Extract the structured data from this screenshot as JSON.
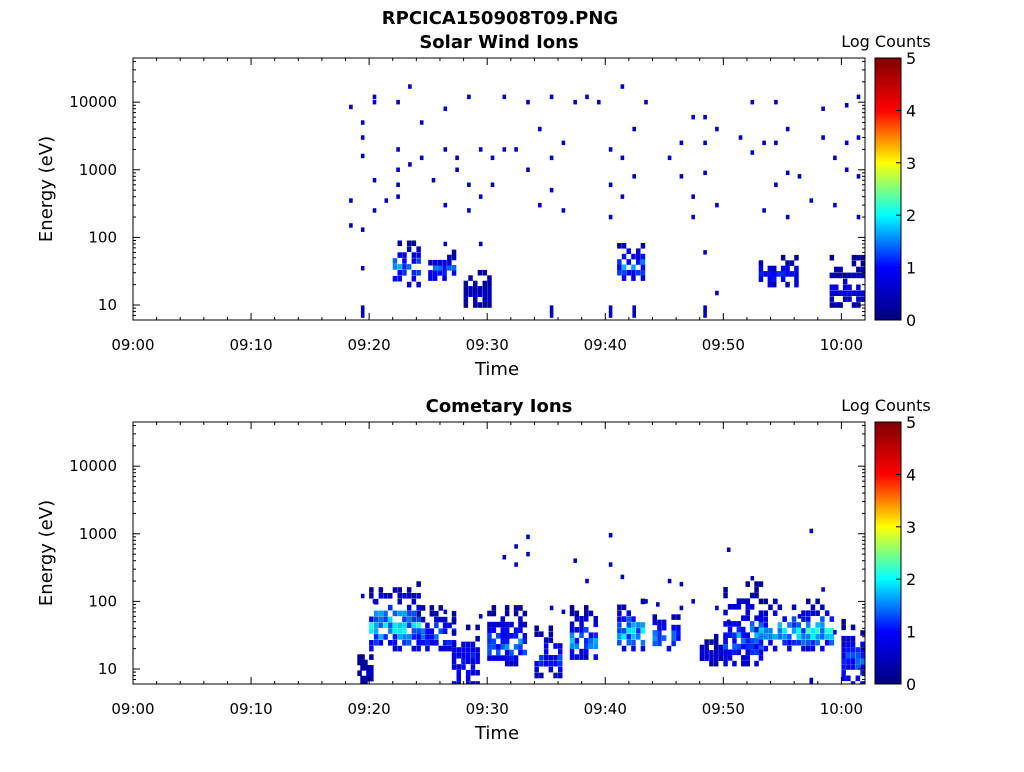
{
  "figure_title": "RPCICA150908T09.PNG",
  "colormap_stops": [
    "#000080",
    "#0000ff",
    "#00ffff",
    "#ffff00",
    "#ff0000",
    "#800000"
  ],
  "chart_data": [
    {
      "type": "heatmap",
      "title": "Solar Wind Ions",
      "xlabel": "Time",
      "ylabel": "Energy (eV)",
      "yscale": "log",
      "xlim": [
        "09:00",
        "10:02"
      ],
      "ylim": [
        6,
        45000
      ],
      "xticks": [
        "09:00",
        "09:10",
        "09:20",
        "09:30",
        "09:40",
        "09:50",
        "10:00"
      ],
      "yticks": [
        "10",
        "100",
        "1000",
        "10000"
      ],
      "colorbar": {
        "label": "Log Counts",
        "range": [
          0,
          5
        ],
        "ticks": [
          "0",
          "1",
          "2",
          "3",
          "4",
          "5"
        ]
      },
      "dense_features": [
        {
          "x_start": "09:22",
          "x_end": "09:24",
          "y_low": 20,
          "y_high": 100,
          "log_counts_peak": 1.8
        },
        {
          "x_start": "09:25",
          "x_end": "09:27",
          "y_low": 25,
          "y_high": 60,
          "log_counts_peak": 1.5
        },
        {
          "x_start": "09:28",
          "x_end": "09:30",
          "y_low": 10,
          "y_high": 30,
          "log_counts_peak": 0.6
        },
        {
          "x_start": "09:41",
          "x_end": "09:43",
          "y_low": 25,
          "y_high": 90,
          "log_counts_peak": 1.8
        },
        {
          "x_start": "09:53",
          "x_end": "09:56",
          "y_low": 20,
          "y_high": 50,
          "log_counts_peak": 1.4
        },
        {
          "x_start": "09:59",
          "x_end": "10:02",
          "y_low": 10,
          "y_high": 50,
          "log_counts_peak": 1.0
        }
      ],
      "points": [
        [
          "09:18",
          8500,
          0.5
        ],
        [
          "09:18",
          350,
          0.5
        ],
        [
          "09:18",
          150,
          0.5
        ],
        [
          "09:19",
          5000,
          0.5
        ],
        [
          "09:19",
          1600,
          0.5
        ],
        [
          "09:19",
          3000,
          0.5
        ],
        [
          "09:19",
          130,
          0.5
        ],
        [
          "09:19",
          35,
          0.5
        ],
        [
          "09:19",
          8,
          0.5
        ],
        [
          "09:20",
          12000,
          0.5
        ],
        [
          "09:20",
          10000,
          0.5
        ],
        [
          "09:20",
          700,
          0.5
        ],
        [
          "09:20",
          250,
          0.5
        ],
        [
          "09:21",
          350,
          0.5
        ],
        [
          "09:22",
          10000,
          0.5
        ],
        [
          "09:22",
          2000,
          0.5
        ],
        [
          "09:22",
          1000,
          0.5
        ],
        [
          "09:22",
          600,
          0.5
        ],
        [
          "09:22",
          400,
          0.5
        ],
        [
          "09:23",
          17000,
          0.5
        ],
        [
          "09:23",
          1200,
          0.5
        ],
        [
          "09:24",
          5000,
          0.5
        ],
        [
          "09:24",
          1500,
          0.5
        ],
        [
          "09:25",
          700,
          0.5
        ],
        [
          "09:26",
          8000,
          0.5
        ],
        [
          "09:26",
          2000,
          0.5
        ],
        [
          "09:26",
          300,
          0.5
        ],
        [
          "09:26",
          80,
          0.5
        ],
        [
          "09:27",
          1500,
          0.5
        ],
        [
          "09:27",
          1000,
          0.5
        ],
        [
          "09:28",
          12000,
          0.5
        ],
        [
          "09:28",
          600,
          0.5
        ],
        [
          "09:28",
          250,
          0.5
        ],
        [
          "09:29",
          2000,
          0.5
        ],
        [
          "09:29",
          400,
          0.5
        ],
        [
          "09:29",
          80,
          0.5
        ],
        [
          "09:30",
          1500,
          0.5
        ],
        [
          "09:30",
          600,
          0.5
        ],
        [
          "09:31",
          12000,
          0.5
        ],
        [
          "09:31",
          2000,
          0.5
        ],
        [
          "09:32",
          2000,
          0.5
        ],
        [
          "09:33",
          10000,
          0.5
        ],
        [
          "09:33",
          1000,
          0.5
        ],
        [
          "09:34",
          4000,
          0.5
        ],
        [
          "09:34",
          300,
          0.5
        ],
        [
          "09:35",
          12000,
          0.5
        ],
        [
          "09:35",
          1500,
          0.5
        ],
        [
          "09:35",
          500,
          0.5
        ],
        [
          "09:35",
          8,
          0.5
        ],
        [
          "09:36",
          2500,
          0.5
        ],
        [
          "09:36",
          250,
          0.5
        ],
        [
          "09:37",
          10000,
          0.5
        ],
        [
          "09:38",
          12000,
          0.5
        ],
        [
          "09:39",
          10000,
          0.5
        ],
        [
          "09:40",
          2000,
          0.5
        ],
        [
          "09:40",
          600,
          0.5
        ],
        [
          "09:40",
          200,
          0.5
        ],
        [
          "09:40",
          8,
          0.5
        ],
        [
          "09:41",
          17000,
          0.5
        ],
        [
          "09:41",
          1500,
          0.5
        ],
        [
          "09:41",
          400,
          0.5
        ],
        [
          "09:42",
          4000,
          0.5
        ],
        [
          "09:42",
          800,
          0.5
        ],
        [
          "09:42",
          8,
          0.5
        ],
        [
          "09:43",
          10000,
          0.5
        ],
        [
          "09:45",
          1500,
          0.5
        ],
        [
          "09:46",
          2500,
          0.5
        ],
        [
          "09:46",
          800,
          0.5
        ],
        [
          "09:47",
          6000,
          0.5
        ],
        [
          "09:47",
          400,
          0.5
        ],
        [
          "09:47",
          200,
          0.5
        ],
        [
          "09:48",
          6000,
          0.5
        ],
        [
          "09:48",
          2500,
          0.5
        ],
        [
          "09:48",
          900,
          0.5
        ],
        [
          "09:48",
          60,
          0.5
        ],
        [
          "09:48",
          8,
          0.5
        ],
        [
          "09:49",
          4000,
          0.5
        ],
        [
          "09:49",
          300,
          0.5
        ],
        [
          "09:49",
          15,
          0.5
        ],
        [
          "09:51",
          3000,
          0.5
        ],
        [
          "09:52",
          10000,
          0.5
        ],
        [
          "09:52",
          1800,
          0.5
        ],
        [
          "09:53",
          2500,
          0.5
        ],
        [
          "09:53",
          250,
          0.5
        ],
        [
          "09:54",
          10000,
          0.5
        ],
        [
          "09:54",
          2500,
          0.5
        ],
        [
          "09:54",
          600,
          0.5
        ],
        [
          "09:55",
          4000,
          0.5
        ],
        [
          "09:55",
          900,
          0.5
        ],
        [
          "09:55",
          200,
          0.5
        ],
        [
          "09:56",
          800,
          0.5
        ],
        [
          "09:57",
          350,
          0.5
        ],
        [
          "09:58",
          8000,
          0.5
        ],
        [
          "09:58",
          3000,
          0.5
        ],
        [
          "09:59",
          1500,
          0.5
        ],
        [
          "09:59",
          300,
          0.5
        ],
        [
          "10:00",
          9000,
          0.5
        ],
        [
          "10:00",
          2500,
          0.5
        ],
        [
          "10:00",
          1000,
          0.5
        ],
        [
          "10:01",
          12000,
          0.5
        ],
        [
          "10:01",
          3000,
          0.5
        ],
        [
          "10:01",
          800,
          0.5
        ],
        [
          "10:01",
          200,
          0.5
        ]
      ]
    },
    {
      "type": "heatmap",
      "title": "Cometary Ions",
      "xlabel": "Time",
      "ylabel": "Energy (eV)",
      "yscale": "log",
      "xlim": [
        "09:00",
        "10:02"
      ],
      "ylim": [
        6,
        45000
      ],
      "xticks": [
        "09:00",
        "09:10",
        "09:20",
        "09:30",
        "09:40",
        "09:50",
        "10:00"
      ],
      "yticks": [
        "10",
        "100",
        "1000",
        "10000"
      ],
      "colorbar": {
        "label": "Log Counts",
        "range": [
          0,
          5
        ],
        "ticks": [
          "0",
          "1",
          "2",
          "3",
          "4",
          "5"
        ]
      },
      "dense_features": [
        {
          "x_start": "09:19",
          "x_end": "09:20",
          "y_low": 6,
          "y_high": 15,
          "log_counts_peak": 0.6
        },
        {
          "x_start": "09:20",
          "x_end": "09:24",
          "y_low": 20,
          "y_high": 180,
          "log_counts_peak": 2.2
        },
        {
          "x_start": "09:24",
          "x_end": "09:27",
          "y_low": 20,
          "y_high": 80,
          "log_counts_peak": 1.8
        },
        {
          "x_start": "09:27",
          "x_end": "09:29",
          "y_low": 6,
          "y_high": 50,
          "log_counts_peak": 1.3
        },
        {
          "x_start": "09:30",
          "x_end": "09:33",
          "y_low": 12,
          "y_high": 80,
          "log_counts_peak": 1.7
        },
        {
          "x_start": "09:34",
          "x_end": "09:36",
          "y_low": 8,
          "y_high": 40,
          "log_counts_peak": 1.5
        },
        {
          "x_start": "09:37",
          "x_end": "09:39",
          "y_low": 15,
          "y_high": 80,
          "log_counts_peak": 1.9
        },
        {
          "x_start": "09:41",
          "x_end": "09:43",
          "y_low": 20,
          "y_high": 100,
          "log_counts_peak": 2.2
        },
        {
          "x_start": "09:44",
          "x_end": "09:46",
          "y_low": 20,
          "y_high": 70,
          "log_counts_peak": 1.9
        },
        {
          "x_start": "09:48",
          "x_end": "09:50",
          "y_low": 12,
          "y_high": 30,
          "log_counts_peak": 0.8
        },
        {
          "x_start": "09:50",
          "x_end": "09:53",
          "y_low": 12,
          "y_high": 180,
          "log_counts_peak": 1.7
        },
        {
          "x_start": "09:53",
          "x_end": "09:57",
          "y_low": 20,
          "y_high": 100,
          "log_counts_peak": 2.2
        },
        {
          "x_start": "09:57",
          "x_end": "09:59",
          "y_low": 20,
          "y_high": 100,
          "log_counts_peak": 2.3
        },
        {
          "x_start": "10:00",
          "x_end": "10:02",
          "y_low": 6,
          "y_high": 50,
          "log_counts_peak": 1.6
        }
      ],
      "points": [
        [
          "09:19",
          120,
          0.5
        ],
        [
          "09:20",
          100,
          0.5
        ],
        [
          "09:24",
          80,
          0.5
        ],
        [
          "09:26",
          70,
          0.5
        ],
        [
          "09:29",
          60,
          0.5
        ],
        [
          "09:31",
          450,
          0.5
        ],
        [
          "09:32",
          650,
          0.5
        ],
        [
          "09:32",
          350,
          0.5
        ],
        [
          "09:33",
          900,
          0.5
        ],
        [
          "09:33",
          500,
          0.5
        ],
        [
          "09:35",
          80,
          0.5
        ],
        [
          "09:36",
          70,
          0.5
        ],
        [
          "09:37",
          400,
          0.5
        ],
        [
          "09:38",
          200,
          0.5
        ],
        [
          "09:40",
          950,
          0.5
        ],
        [
          "09:40",
          350,
          0.5
        ],
        [
          "09:41",
          230,
          0.5
        ],
        [
          "09:43",
          100,
          0.5
        ],
        [
          "09:44",
          90,
          0.5
        ],
        [
          "09:45",
          200,
          0.5
        ],
        [
          "09:46",
          180,
          0.5
        ],
        [
          "09:46",
          80,
          0.5
        ],
        [
          "09:47",
          100,
          0.5
        ],
        [
          "09:49",
          80,
          0.5
        ],
        [
          "09:50",
          50,
          0.5
        ],
        [
          "09:50",
          580,
          0.5
        ],
        [
          "09:52",
          220,
          0.5
        ],
        [
          "09:54",
          100,
          0.5
        ],
        [
          "09:56",
          60,
          0.5
        ],
        [
          "09:57",
          1100,
          0.5
        ],
        [
          "09:58",
          150,
          0.5
        ],
        [
          "09:57",
          6,
          0.5
        ],
        [
          "09:59",
          35,
          0.5
        ]
      ]
    }
  ]
}
